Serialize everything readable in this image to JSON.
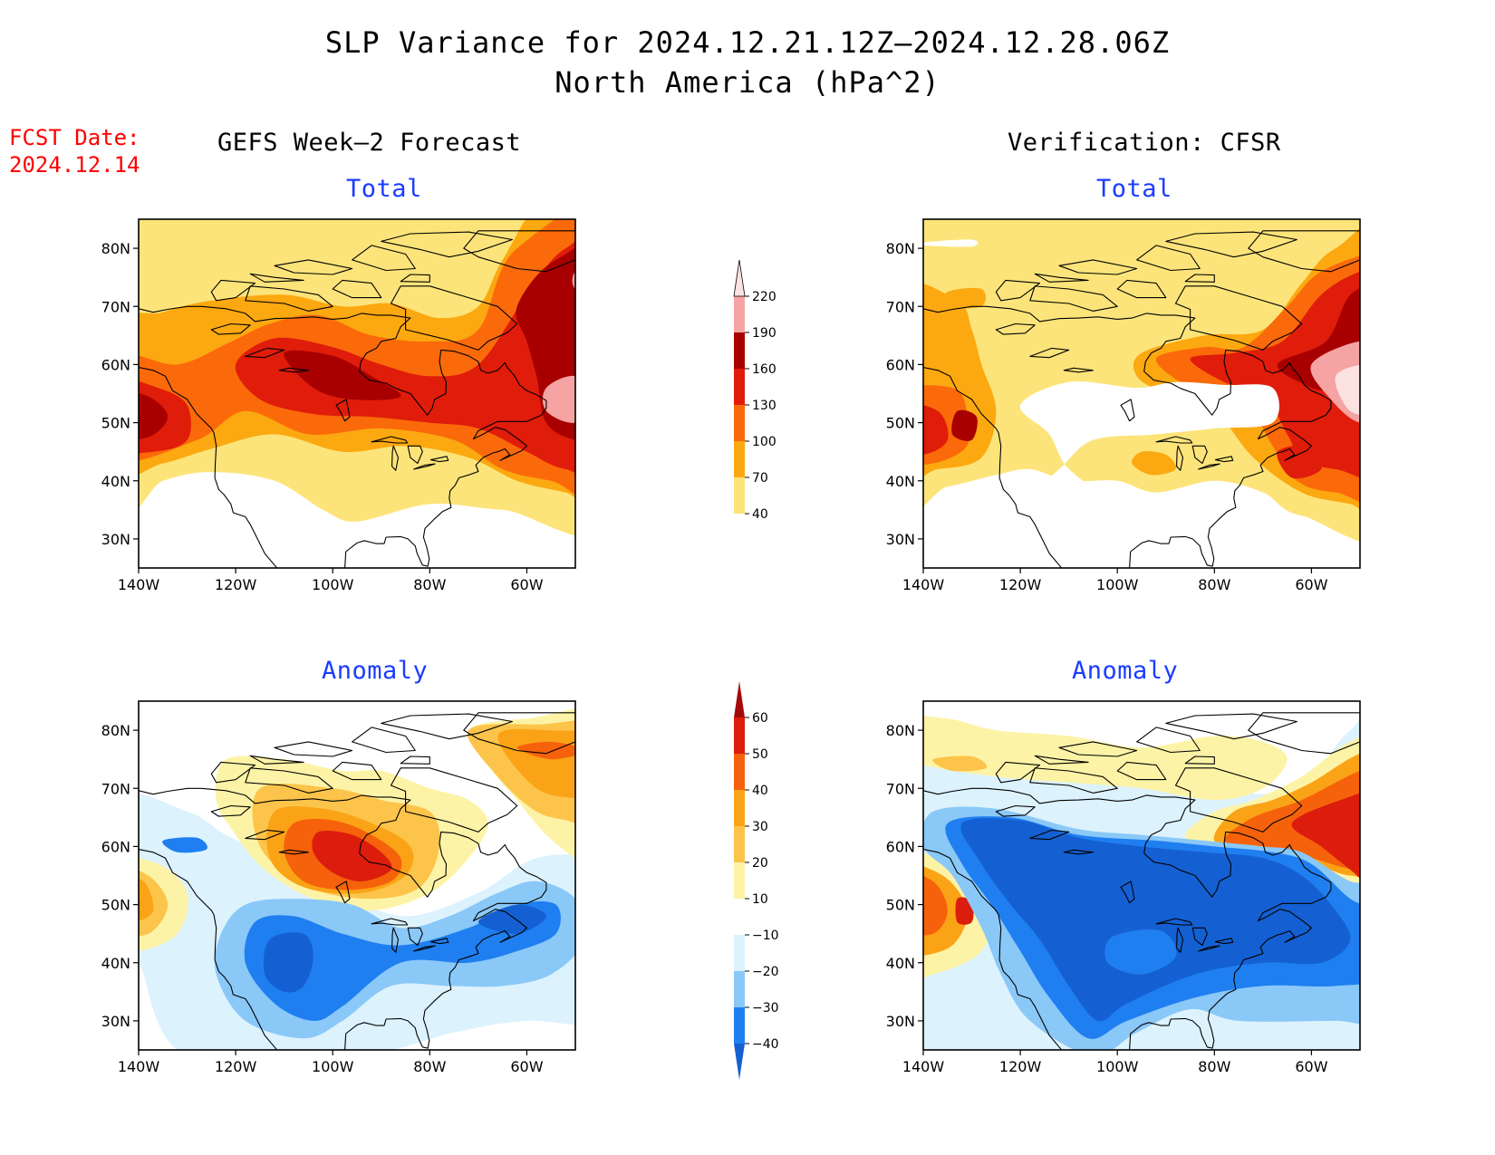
{
  "title": {
    "line1": "SLP Variance for 2024.12.21.12Z–2024.12.28.06Z",
    "line2": "North America (hPa^2)"
  },
  "fcst_date": {
    "label": "FCST Date:",
    "value": "2024.12.14"
  },
  "columns": {
    "left": "GEFS Week–2 Forecast",
    "right": "Verification: CFSR"
  },
  "subtitles": {
    "total": "Total",
    "anomaly": "Anomaly"
  },
  "axes": {
    "lat_ticks": [
      "30N",
      "40N",
      "50N",
      "60N",
      "70N",
      "80N"
    ],
    "lon_ticks": [
      "140W",
      "120W",
      "100W",
      "80W",
      "60W"
    ],
    "lat_range": [
      25,
      85
    ],
    "lon_range": [
      -140,
      -50
    ]
  },
  "colorbars": {
    "total": {
      "labels": [
        "40",
        "70",
        "100",
        "130",
        "160",
        "190",
        "220"
      ],
      "colors": [
        "#fde47a",
        "#fca810",
        "#fa6a0a",
        "#e01c0a",
        "#a80000",
        "#f5a3a3",
        "#fde2e2"
      ]
    },
    "anomaly": {
      "labels": [
        "−40",
        "−30",
        "−20",
        "−10",
        "10",
        "20",
        "30",
        "40",
        "50",
        "60"
      ],
      "colors": [
        "#1460d2",
        "#1f7ff0",
        "#8ac8f8",
        "#dcf2fd",
        "#ffffff",
        "#fdf3a6",
        "#fcc44a",
        "#fba316",
        "#f5620b",
        "#dc1c0c",
        "#a50a0a"
      ]
    }
  },
  "colors": {
    "fcst_date": "#ff0000",
    "subtitle": "#1a3cff"
  }
}
